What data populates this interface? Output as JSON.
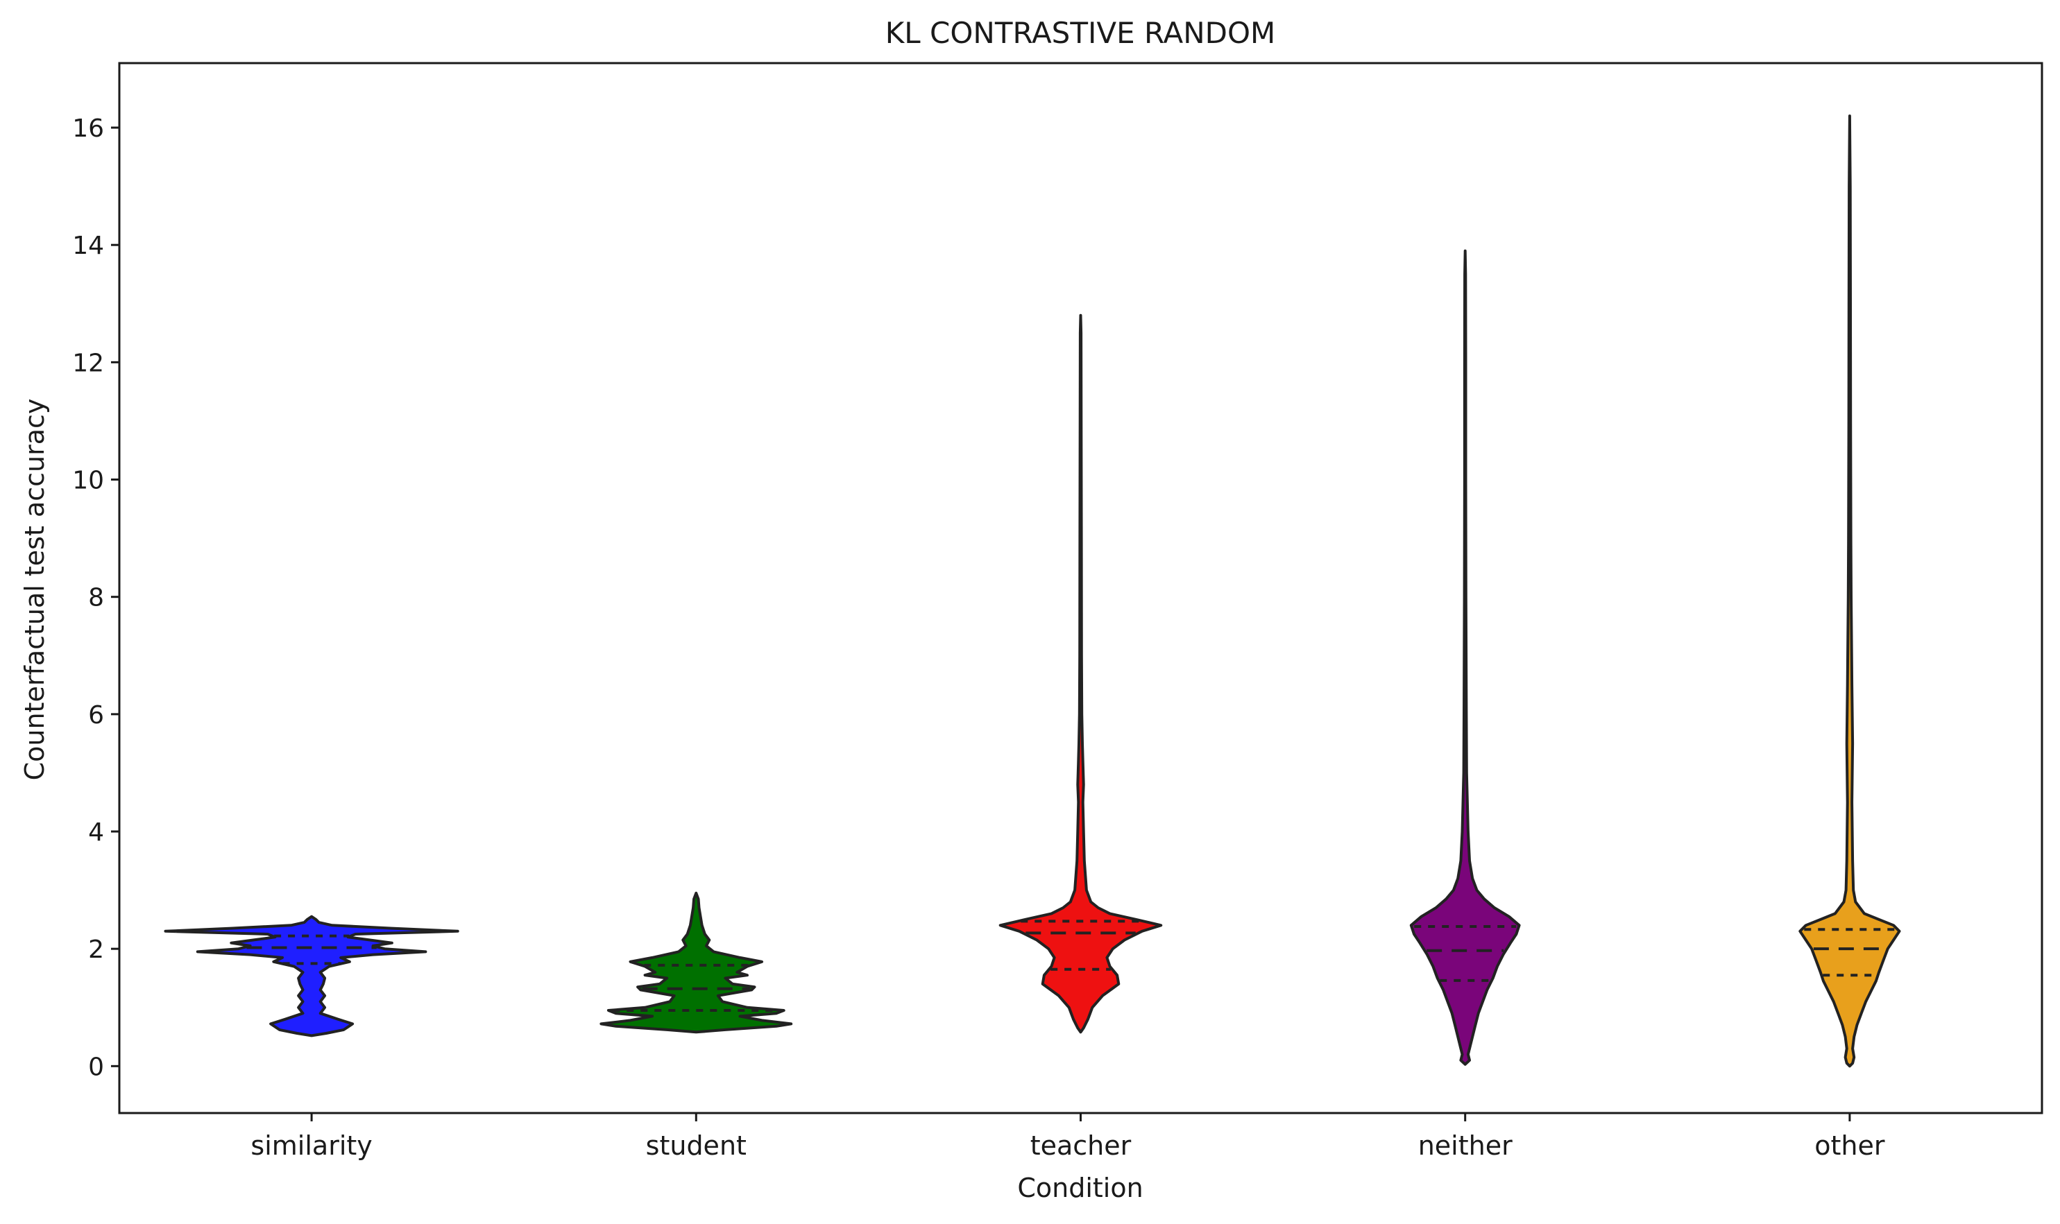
{
  "chart_data": {
    "type": "violin",
    "title": "KL CONTRASTIVE RANDOM",
    "xlabel": "Condition",
    "ylabel": "Counterfactual test accuracy",
    "ylim": [
      -0.8,
      17.1
    ],
    "yticks": [
      0,
      2,
      4,
      6,
      8,
      10,
      12,
      14,
      16
    ],
    "grid": false,
    "legend": "none",
    "categories": [
      "similarity",
      "student",
      "teacher",
      "neither",
      "other"
    ],
    "series": [
      {
        "category": "similarity",
        "color": "#1f1fff",
        "min": 0.52,
        "max": 2.55,
        "quartiles": [
          1.75,
          2.02,
          2.22
        ],
        "density": [
          [
            0.52,
            0.0
          ],
          [
            0.56,
            0.1
          ],
          [
            0.62,
            0.22
          ],
          [
            0.72,
            0.28
          ],
          [
            0.8,
            0.18
          ],
          [
            0.9,
            0.06
          ],
          [
            1.0,
            0.09
          ],
          [
            1.1,
            0.06
          ],
          [
            1.2,
            0.09
          ],
          [
            1.3,
            0.06
          ],
          [
            1.4,
            0.08
          ],
          [
            1.5,
            0.09
          ],
          [
            1.6,
            0.06
          ],
          [
            1.7,
            0.12
          ],
          [
            1.78,
            0.26
          ],
          [
            1.85,
            0.2
          ],
          [
            1.9,
            0.42
          ],
          [
            1.95,
            0.78
          ],
          [
            2.0,
            0.5
          ],
          [
            2.05,
            0.42
          ],
          [
            2.1,
            0.55
          ],
          [
            2.15,
            0.4
          ],
          [
            2.2,
            0.25
          ],
          [
            2.25,
            0.3
          ],
          [
            2.3,
            1.0
          ],
          [
            2.35,
            0.55
          ],
          [
            2.4,
            0.14
          ],
          [
            2.45,
            0.05
          ],
          [
            2.5,
            0.03
          ],
          [
            2.55,
            0.0
          ]
        ]
      },
      {
        "category": "student",
        "color": "#007000",
        "min": 0.58,
        "max": 2.95,
        "quartiles": [
          0.95,
          1.32,
          1.72
        ],
        "density": [
          [
            0.58,
            0.0
          ],
          [
            0.62,
            0.2
          ],
          [
            0.68,
            0.55
          ],
          [
            0.72,
            0.65
          ],
          [
            0.78,
            0.45
          ],
          [
            0.85,
            0.3
          ],
          [
            0.9,
            0.55
          ],
          [
            0.95,
            0.6
          ],
          [
            1.0,
            0.35
          ],
          [
            1.1,
            0.18
          ],
          [
            1.2,
            0.15
          ],
          [
            1.3,
            0.38
          ],
          [
            1.35,
            0.4
          ],
          [
            1.4,
            0.25
          ],
          [
            1.5,
            0.2
          ],
          [
            1.55,
            0.35
          ],
          [
            1.6,
            0.28
          ],
          [
            1.7,
            0.35
          ],
          [
            1.78,
            0.45
          ],
          [
            1.85,
            0.3
          ],
          [
            1.95,
            0.12
          ],
          [
            2.05,
            0.07
          ],
          [
            2.15,
            0.09
          ],
          [
            2.25,
            0.06
          ],
          [
            2.4,
            0.04
          ],
          [
            2.55,
            0.03
          ],
          [
            2.7,
            0.02
          ],
          [
            2.85,
            0.015
          ],
          [
            2.95,
            0.0
          ]
        ]
      },
      {
        "category": "teacher",
        "color": "#ee1111",
        "min": 0.58,
        "max": 12.8,
        "quartiles": [
          1.65,
          2.27,
          2.47
        ],
        "density": [
          [
            0.58,
            0.0
          ],
          [
            0.65,
            0.02
          ],
          [
            0.8,
            0.05
          ],
          [
            1.0,
            0.08
          ],
          [
            1.2,
            0.15
          ],
          [
            1.4,
            0.26
          ],
          [
            1.55,
            0.25
          ],
          [
            1.7,
            0.2
          ],
          [
            1.85,
            0.18
          ],
          [
            2.0,
            0.22
          ],
          [
            2.15,
            0.3
          ],
          [
            2.3,
            0.42
          ],
          [
            2.4,
            0.55
          ],
          [
            2.5,
            0.38
          ],
          [
            2.6,
            0.2
          ],
          [
            2.7,
            0.12
          ],
          [
            2.8,
            0.07
          ],
          [
            3.0,
            0.04
          ],
          [
            3.5,
            0.025
          ],
          [
            4.0,
            0.02
          ],
          [
            4.5,
            0.015
          ],
          [
            4.8,
            0.02
          ],
          [
            5.2,
            0.015
          ],
          [
            5.5,
            0.012
          ],
          [
            6.0,
            0.008
          ],
          [
            7.0,
            0.006
          ],
          [
            9.0,
            0.005
          ],
          [
            11.0,
            0.004
          ],
          [
            12.5,
            0.003
          ],
          [
            12.8,
            0.0
          ]
        ]
      },
      {
        "category": "neither",
        "color": "#7a057a",
        "min": 0.03,
        "max": 13.9,
        "quartiles": [
          1.46,
          1.97,
          2.38
        ],
        "density": [
          [
            0.03,
            0.0
          ],
          [
            0.1,
            0.03
          ],
          [
            0.2,
            0.02
          ],
          [
            0.3,
            0.03
          ],
          [
            0.5,
            0.05
          ],
          [
            0.7,
            0.07
          ],
          [
            0.9,
            0.09
          ],
          [
            1.1,
            0.12
          ],
          [
            1.3,
            0.15
          ],
          [
            1.5,
            0.19
          ],
          [
            1.7,
            0.22
          ],
          [
            1.9,
            0.26
          ],
          [
            2.1,
            0.31
          ],
          [
            2.25,
            0.35
          ],
          [
            2.4,
            0.37
          ],
          [
            2.55,
            0.3
          ],
          [
            2.7,
            0.2
          ],
          [
            2.85,
            0.13
          ],
          [
            3.0,
            0.08
          ],
          [
            3.2,
            0.05
          ],
          [
            3.5,
            0.03
          ],
          [
            4.0,
            0.02
          ],
          [
            5.0,
            0.01
          ],
          [
            6.0,
            0.008
          ],
          [
            8.0,
            0.005
          ],
          [
            10.0,
            0.004
          ],
          [
            12.0,
            0.004
          ],
          [
            13.5,
            0.003
          ],
          [
            13.9,
            0.0
          ]
        ]
      },
      {
        "category": "other",
        "color": "#e8a01c",
        "min": 0.0,
        "max": 16.2,
        "quartiles": [
          1.55,
          2.0,
          2.33
        ],
        "density": [
          [
            0.0,
            0.0
          ],
          [
            0.05,
            0.02
          ],
          [
            0.15,
            0.03
          ],
          [
            0.3,
            0.02
          ],
          [
            0.5,
            0.03
          ],
          [
            0.7,
            0.05
          ],
          [
            0.9,
            0.08
          ],
          [
            1.1,
            0.11
          ],
          [
            1.3,
            0.15
          ],
          [
            1.45,
            0.18
          ],
          [
            1.6,
            0.2
          ],
          [
            1.8,
            0.23
          ],
          [
            2.0,
            0.26
          ],
          [
            2.15,
            0.3
          ],
          [
            2.3,
            0.34
          ],
          [
            2.4,
            0.3
          ],
          [
            2.5,
            0.2
          ],
          [
            2.6,
            0.1
          ],
          [
            2.8,
            0.04
          ],
          [
            3.0,
            0.025
          ],
          [
            3.5,
            0.02
          ],
          [
            4.5,
            0.015
          ],
          [
            5.5,
            0.02
          ],
          [
            6.5,
            0.015
          ],
          [
            8.0,
            0.01
          ],
          [
            9.0,
            0.008
          ],
          [
            11.0,
            0.006
          ],
          [
            13.0,
            0.005
          ],
          [
            15.0,
            0.004
          ],
          [
            16.2,
            0.0
          ]
        ]
      }
    ]
  }
}
